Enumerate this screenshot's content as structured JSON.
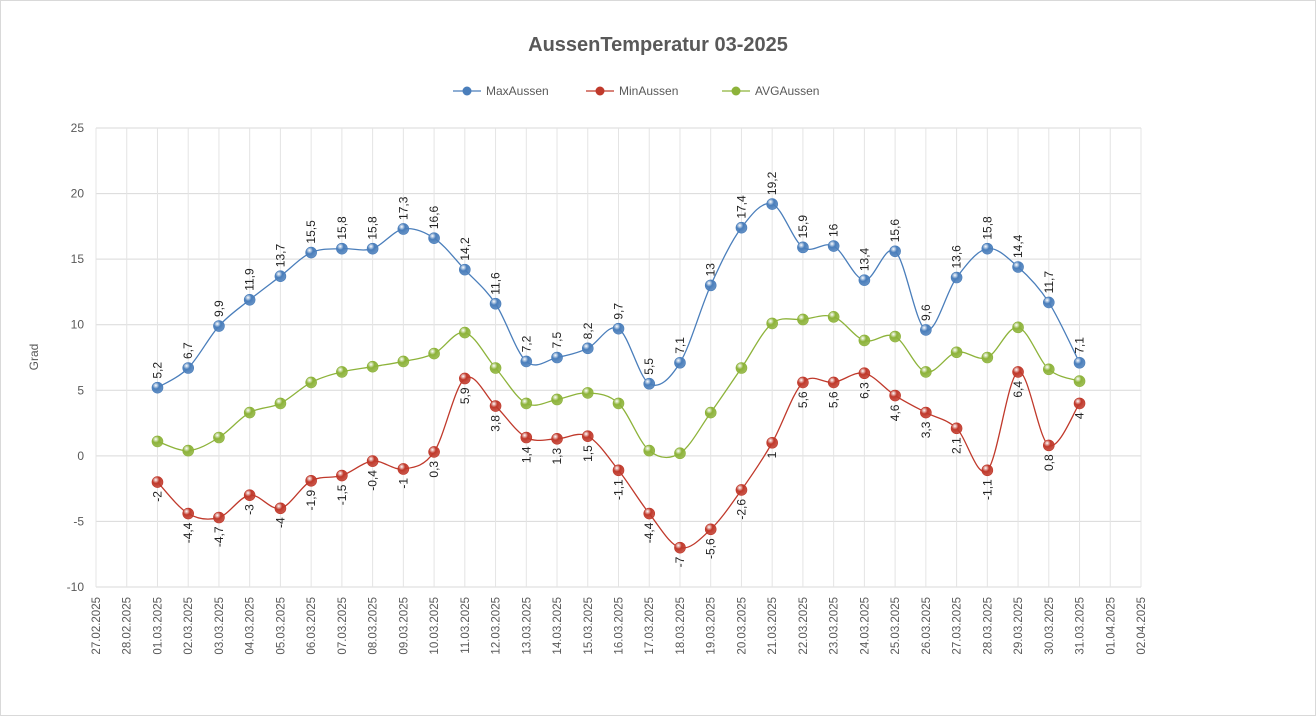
{
  "chart_data": {
    "type": "line",
    "title": "AussenTemperatur 03-2025",
    "ylabel": "Grad",
    "xlabel": "",
    "ylim": [
      -10,
      25
    ],
    "yticks": [
      -10,
      -5,
      0,
      5,
      10,
      15,
      20,
      25
    ],
    "grid": true,
    "legend_position": "top",
    "x_tick_labels": [
      "27.02.2025",
      "28.02.2025",
      "01.03.2025",
      "02.03.2025",
      "03.03.2025",
      "04.03.2025",
      "05.03.2025",
      "06.03.2025",
      "07.03.2025",
      "08.03.2025",
      "09.03.2025",
      "10.03.2025",
      "11.03.2025",
      "12.03.2025",
      "13.03.2025",
      "14.03.2025",
      "15.03.2025",
      "16.03.2025",
      "17.03.2025",
      "18.03.2025",
      "19.03.2025",
      "20.03.2025",
      "21.03.2025",
      "22.03.2025",
      "23.03.2025",
      "24.03.2025",
      "25.03.2025",
      "26.03.2025",
      "27.03.2025",
      "28.03.2025",
      "29.03.2025",
      "30.03.2025",
      "31.03.2025",
      "01.04.2025",
      "02.04.2025"
    ],
    "first_data_index": 2,
    "series": [
      {
        "name": "MaxAussen",
        "color": "#4a7ebb",
        "labels": "above",
        "values": [
          5.2,
          6.7,
          9.9,
          11.9,
          13.7,
          15.5,
          15.8,
          15.8,
          17.3,
          16.6,
          14.2,
          11.6,
          7.2,
          7.5,
          8.2,
          9.7,
          5.5,
          7.1,
          13,
          17.4,
          19.2,
          15.9,
          16,
          13.4,
          15.6,
          9.6,
          13.6,
          15.8,
          14.4,
          11.7,
          7.1
        ]
      },
      {
        "name": "MinAussen",
        "color": "#c0392b",
        "labels": "below",
        "values": [
          -2,
          -4.4,
          -4.7,
          -3,
          -4,
          -1.9,
          -1.5,
          -0.4,
          -1,
          0.3,
          5.9,
          3.8,
          1.4,
          1.3,
          1.5,
          -1.1,
          -4.4,
          -7,
          -5.6,
          -2.6,
          1,
          5.6,
          5.6,
          6.3,
          4.6,
          3.3,
          2.1,
          -1.1,
          6.4,
          0.8,
          4
        ]
      },
      {
        "name": "AVGAussen",
        "color": "#8db33a",
        "labels": "none",
        "values": [
          1.1,
          0.4,
          1.4,
          3.3,
          4.0,
          5.6,
          6.4,
          6.8,
          7.2,
          7.8,
          9.4,
          6.7,
          4.0,
          4.3,
          4.8,
          4.0,
          0.4,
          0.2,
          3.3,
          6.7,
          10.1,
          10.4,
          10.6,
          8.8,
          9.1,
          6.4,
          7.9,
          7.5,
          9.8,
          6.6,
          5.7
        ]
      }
    ]
  }
}
